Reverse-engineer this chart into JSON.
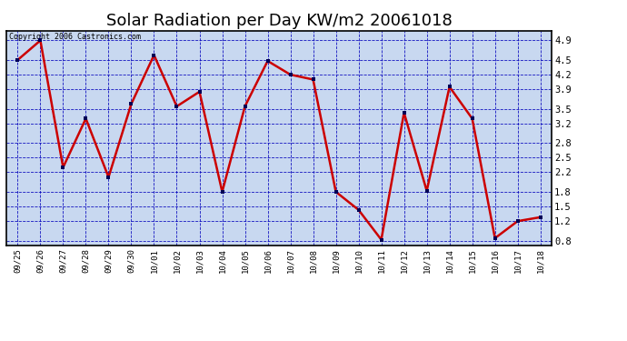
{
  "title": "Solar Radiation per Day KW/m2 20061018",
  "copyright": "Copyright 2006 Castronics.com",
  "dates": [
    "09/25",
    "09/26",
    "09/27",
    "09/28",
    "09/29",
    "09/30",
    "10/01",
    "10/02",
    "10/03",
    "10/04",
    "10/05",
    "10/06",
    "10/07",
    "10/08",
    "10/09",
    "10/10",
    "10/11",
    "10/12",
    "10/13",
    "10/14",
    "10/15",
    "10/16",
    "10/17",
    "10/18"
  ],
  "values": [
    4.5,
    4.9,
    2.3,
    3.3,
    2.1,
    3.6,
    4.6,
    3.55,
    3.85,
    1.8,
    3.55,
    4.48,
    4.2,
    4.1,
    1.8,
    1.43,
    0.82,
    3.42,
    1.82,
    3.95,
    3.3,
    0.85,
    1.2,
    1.28
  ],
  "line_color": "#cc0000",
  "marker_color": "#000055",
  "bg_color": "#c8d8f0",
  "grid_color": "#0000bb",
  "title_fontsize": 14,
  "ylim": [
    0.7,
    5.1
  ],
  "yticks": [
    0.8,
    1.2,
    1.5,
    1.8,
    2.2,
    2.5,
    2.8,
    3.2,
    3.5,
    3.9,
    4.2,
    4.5,
    4.9
  ],
  "outer_bg": "#ffffff",
  "border_color": "#000000"
}
